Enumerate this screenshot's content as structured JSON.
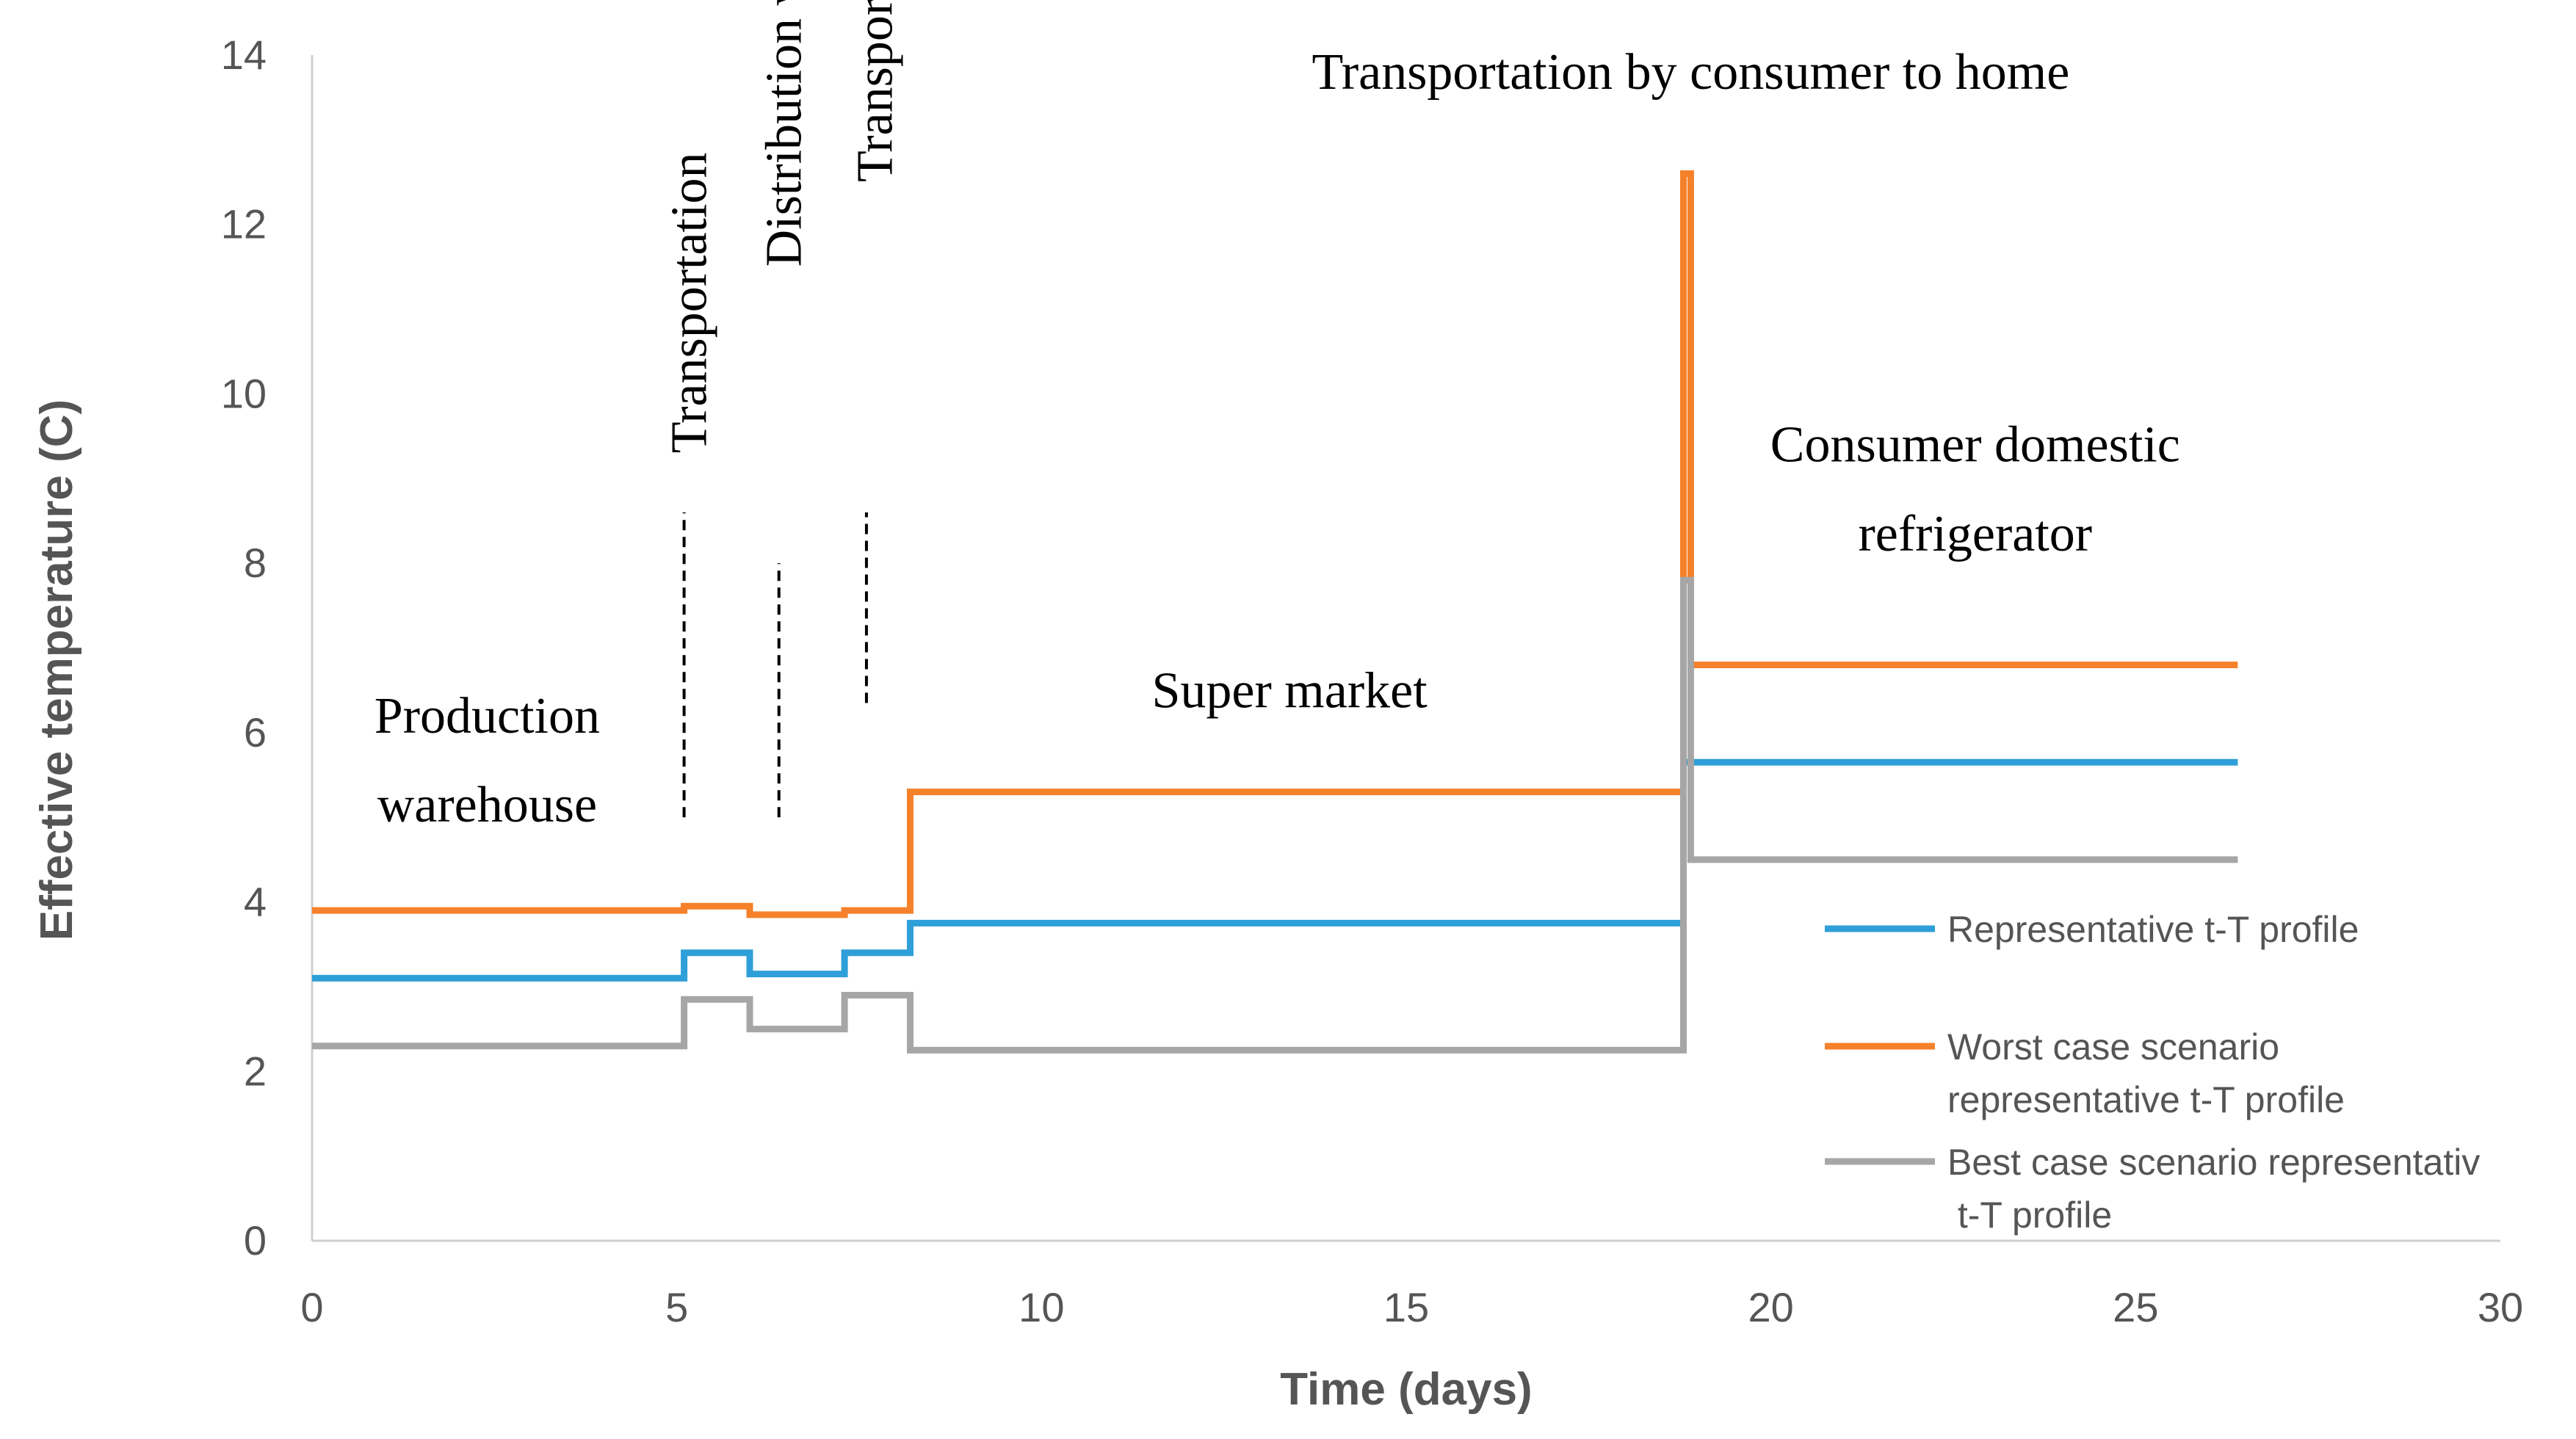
{
  "chart_data": {
    "type": "line",
    "title": "",
    "xlabel": "Time (days)",
    "ylabel": "Effective temperature (C)",
    "xlim": [
      0,
      30
    ],
    "ylim": [
      0,
      14
    ],
    "xticks": [
      "0",
      "5",
      "10",
      "15",
      "20",
      "25",
      "30"
    ],
    "yticks": [
      "0",
      "2",
      "4",
      "6",
      "8",
      "10",
      "12",
      "14"
    ],
    "grid": false,
    "legend_position": "right",
    "series": [
      {
        "name": "Representative t-T profile",
        "color": "#2e9fd8",
        "step": true,
        "points": [
          [
            0,
            3.1
          ],
          [
            5.1,
            3.1
          ],
          [
            5.1,
            3.4
          ],
          [
            6.0,
            3.4
          ],
          [
            6.0,
            3.15
          ],
          [
            7.3,
            3.15
          ],
          [
            7.3,
            3.4
          ],
          [
            8.2,
            3.4
          ],
          [
            8.2,
            3.75
          ],
          [
            18.8,
            3.75
          ],
          [
            18.8,
            5.65
          ],
          [
            26.4,
            5.65
          ]
        ]
      },
      {
        "name": "Worst case scenario representative t-T profile",
        "color": "#f5812b",
        "step": true,
        "points": [
          [
            0,
            3.9
          ],
          [
            5.1,
            3.9
          ],
          [
            5.1,
            3.95
          ],
          [
            6.0,
            3.95
          ],
          [
            6.0,
            3.85
          ],
          [
            7.3,
            3.85
          ],
          [
            7.3,
            3.9
          ],
          [
            8.2,
            3.9
          ],
          [
            8.2,
            5.3
          ],
          [
            18.8,
            5.3
          ],
          [
            18.8,
            12.6
          ],
          [
            18.9,
            12.6
          ],
          [
            18.9,
            6.8
          ],
          [
            26.4,
            6.8
          ]
        ]
      },
      {
        "name": "Best case scenario representative t-T profile",
        "color": "#a6a6a6",
        "step": true,
        "points": [
          [
            0,
            2.3
          ],
          [
            5.1,
            2.3
          ],
          [
            5.1,
            2.85
          ],
          [
            6.0,
            2.85
          ],
          [
            6.0,
            2.5
          ],
          [
            7.3,
            2.5
          ],
          [
            7.3,
            2.9
          ],
          [
            8.2,
            2.9
          ],
          [
            8.2,
            2.25
          ],
          [
            18.8,
            2.25
          ],
          [
            18.8,
            7.8
          ],
          [
            18.9,
            7.8
          ],
          [
            18.9,
            4.5
          ],
          [
            26.4,
            4.5
          ]
        ]
      }
    ],
    "annotations": [
      {
        "text": "Production",
        "x": 2.4,
        "y": 6.0
      },
      {
        "text": "warehouse",
        "x": 2.4,
        "y": 4.95
      },
      {
        "text": "Transportation",
        "x": 5.4,
        "y": 9.3,
        "rotate": -90
      },
      {
        "text": "Distribution warehouse",
        "x": 6.7,
        "y": 11.5,
        "rotate": -90
      },
      {
        "text": "Transportation",
        "x": 7.95,
        "y": 12.5,
        "rotate": -90
      },
      {
        "text": "Super market",
        "x": 13.4,
        "y": 6.3
      },
      {
        "text": "Transportation by consumer to home",
        "x": 18.9,
        "y": 13.6
      },
      {
        "text": "Consumer domestic",
        "x": 22.8,
        "y": 9.2
      },
      {
        "text": "refrigerator",
        "x": 22.8,
        "y": 8.15
      }
    ],
    "dashed_markers": [
      {
        "x": 5.1,
        "y_from": 5.0,
        "y_to": 8.6
      },
      {
        "x": 6.4,
        "y_from": 5.0,
        "y_to": 8.0
      },
      {
        "x": 7.6,
        "y_from": 6.35,
        "y_to": 8.6
      }
    ]
  }
}
